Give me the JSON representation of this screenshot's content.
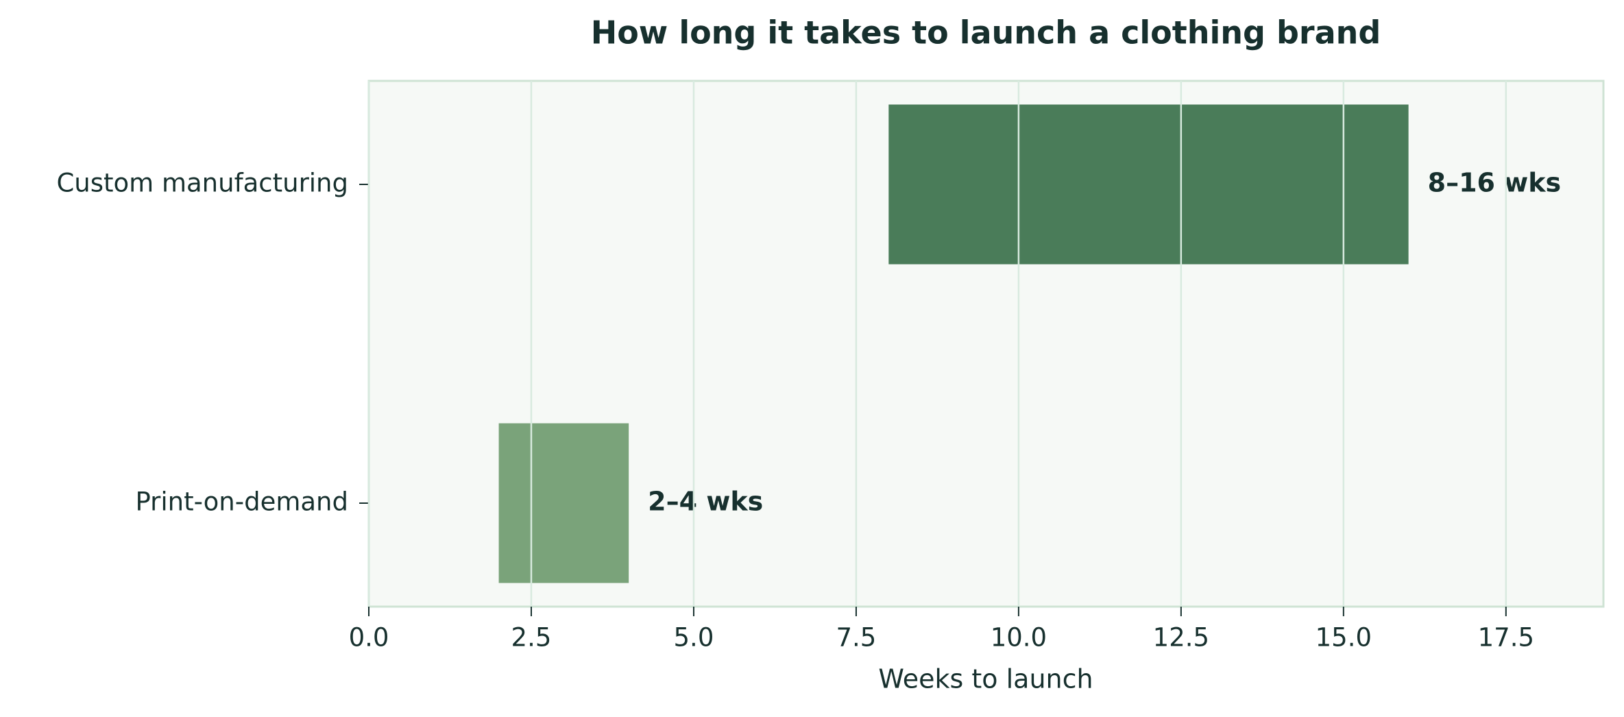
{
  "chart_data": {
    "type": "range-bar",
    "title": "How long it takes to launch a clothing brand",
    "xlabel": "Weeks to launch",
    "categories": [
      "Custom manufacturing",
      "Print-on-demand"
    ],
    "starts": [
      8,
      2
    ],
    "ends": [
      16,
      4
    ],
    "value_labels": [
      "8–16 wks",
      "2–4 wks"
    ],
    "colors": [
      "#4a7c59",
      "#7aa37a"
    ],
    "xlim": [
      0,
      19
    ],
    "xticks": [
      {
        "value": 0,
        "label": "0.0"
      },
      2.5,
      {
        "value": 5,
        "label": "5.0"
      },
      7.5,
      {
        "value": 10,
        "label": "10.0"
      },
      12.5,
      {
        "value": 15,
        "label": "15.0"
      },
      17.5
    ],
    "grid": true
  }
}
